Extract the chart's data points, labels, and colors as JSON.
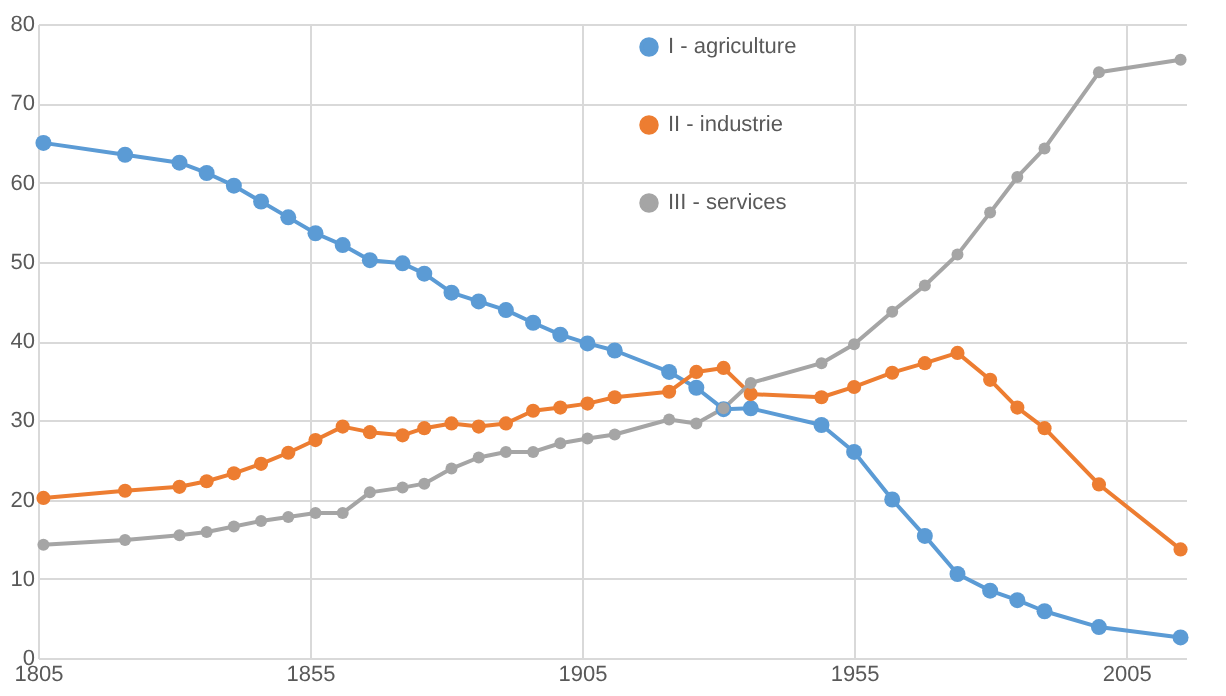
{
  "chart_data": {
    "type": "line",
    "x": [
      1806,
      1821,
      1831,
      1836,
      1841,
      1846,
      1851,
      1856,
      1861,
      1866,
      1872,
      1876,
      1881,
      1886,
      1891,
      1896,
      1901,
      1906,
      1911,
      1921,
      1926,
      1931,
      1936,
      1949,
      1955,
      1962,
      1968,
      1974,
      1980,
      1985,
      1990,
      2000,
      2015
    ],
    "series": [
      {
        "name": "I - agriculture",
        "color": "#5b9bd5",
        "values": [
          65.0,
          63.5,
          62.5,
          61.2,
          59.6,
          57.6,
          55.6,
          53.6,
          52.1,
          50.2,
          49.8,
          48.5,
          46.1,
          45.0,
          43.9,
          42.3,
          40.8,
          39.7,
          38.8,
          36.1,
          34.1,
          31.4,
          31.5,
          29.4,
          26.0,
          20.0,
          15.4,
          10.6,
          8.5,
          7.3,
          5.9,
          3.9,
          2.6
        ]
      },
      {
        "name": "II - industrie",
        "color": "#ed7d31",
        "values": [
          20.2,
          21.1,
          21.6,
          22.3,
          23.3,
          24.5,
          25.9,
          27.5,
          29.2,
          28.5,
          28.1,
          29.0,
          29.6,
          29.2,
          29.6,
          31.2,
          31.6,
          32.1,
          32.9,
          33.6,
          36.1,
          36.6,
          33.3,
          32.9,
          34.2,
          36.0,
          37.2,
          38.5,
          35.1,
          31.6,
          29.0,
          21.9,
          13.7
        ]
      },
      {
        "name": "III - services",
        "color": "#a5a5a5",
        "values": [
          14.3,
          14.9,
          15.5,
          15.9,
          16.6,
          17.3,
          17.8,
          18.3,
          18.3,
          20.9,
          21.5,
          22.0,
          23.9,
          25.3,
          26.0,
          26.0,
          27.1,
          27.7,
          28.2,
          30.1,
          29.6,
          31.5,
          34.7,
          37.2,
          39.6,
          43.7,
          47.0,
          50.9,
          56.2,
          60.7,
          64.3,
          73.9,
          75.5
        ]
      }
    ],
    "xlim": [
      1805,
      2016
    ],
    "xticks": [
      1805,
      1855,
      1905,
      1955,
      2005
    ],
    "ylim": [
      0,
      80
    ],
    "yticks": [
      0,
      10,
      20,
      30,
      40,
      50,
      60,
      70,
      80
    ],
    "grid": true,
    "legend": "top",
    "marker": "circle"
  }
}
